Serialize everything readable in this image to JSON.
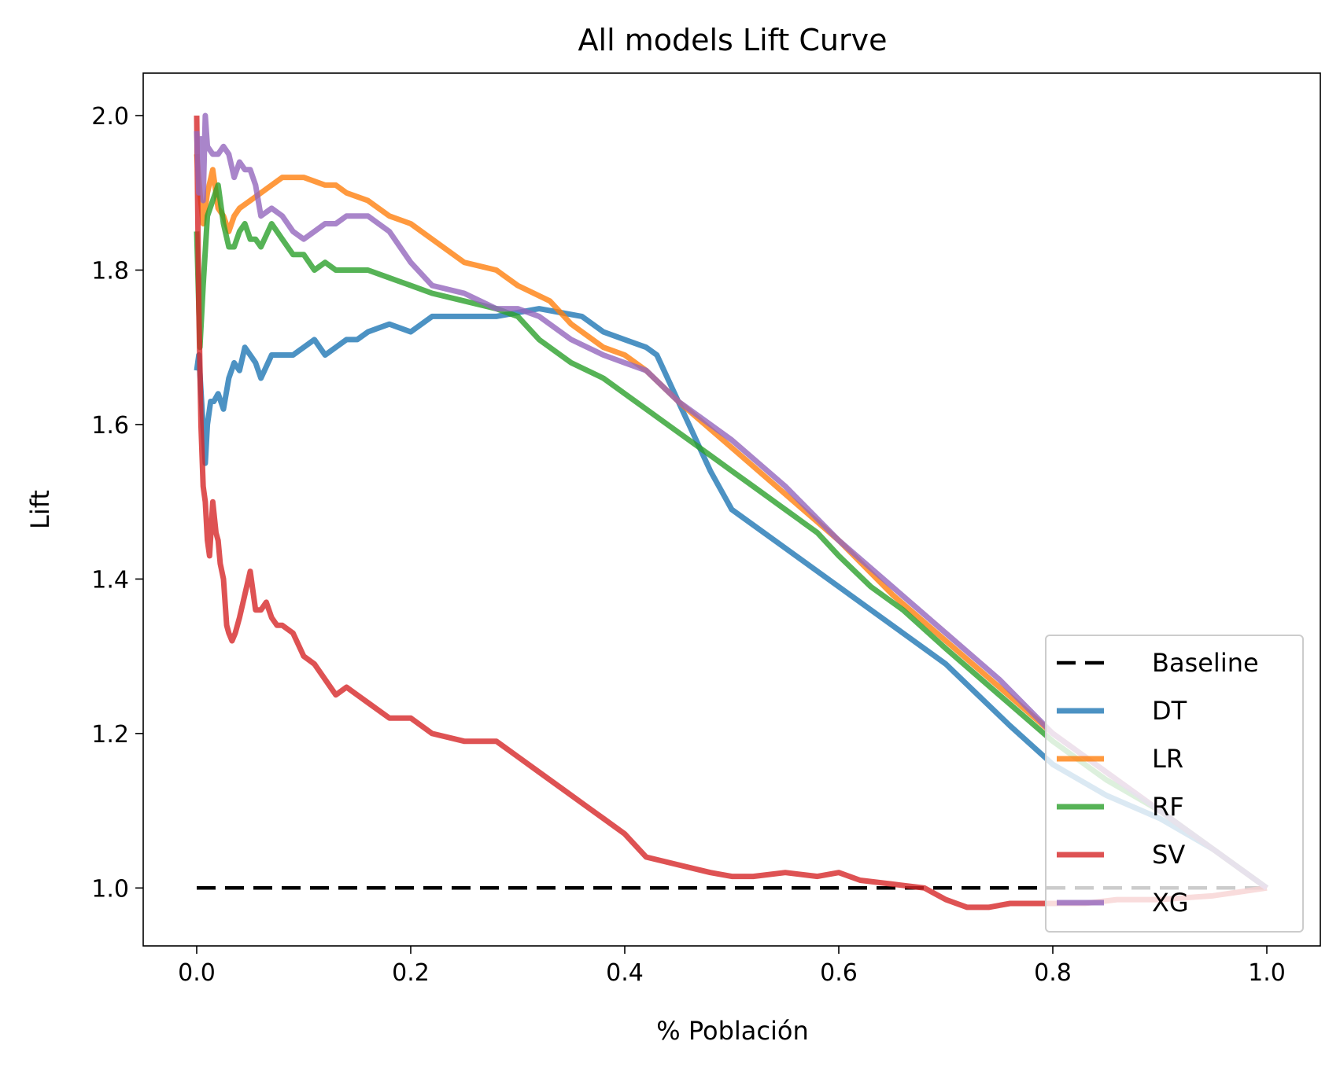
{
  "chart_data": {
    "type": "line",
    "title": "All models Lift Curve",
    "xlabel": "% Población",
    "ylabel": "Lift",
    "xlim": [
      -0.05,
      1.05
    ],
    "ylim": [
      0.925,
      2.055
    ],
    "xticks": [
      0.0,
      0.2,
      0.4,
      0.6,
      0.8,
      1.0
    ],
    "xtick_labels": [
      "0.0",
      "0.2",
      "0.4",
      "0.6",
      "0.8",
      "1.0"
    ],
    "yticks": [
      1.0,
      1.2,
      1.4,
      1.6,
      1.8,
      2.0
    ],
    "ytick_labels": [
      "1.0",
      "1.2",
      "1.4",
      "1.6",
      "1.8",
      "2.0"
    ],
    "grid": false,
    "legend_position": "lower-right",
    "series": [
      {
        "name": "Baseline",
        "color": "#000000",
        "style": "dashed",
        "x": [
          0.0,
          1.0
        ],
        "y": [
          1.0,
          1.0
        ]
      },
      {
        "name": "DT",
        "color": "#1f77b4",
        "style": "solid",
        "x": [
          0.0,
          0.002,
          0.005,
          0.008,
          0.01,
          0.013,
          0.016,
          0.02,
          0.025,
          0.03,
          0.035,
          0.04,
          0.045,
          0.05,
          0.055,
          0.06,
          0.07,
          0.08,
          0.09,
          0.1,
          0.11,
          0.115,
          0.12,
          0.13,
          0.14,
          0.15,
          0.16,
          0.18,
          0.2,
          0.22,
          0.25,
          0.28,
          0.3,
          0.32,
          0.34,
          0.36,
          0.38,
          0.4,
          0.42,
          0.43,
          0.44,
          0.45,
          0.46,
          0.47,
          0.48,
          0.5,
          0.52,
          0.55,
          0.58,
          0.6,
          0.63,
          0.66,
          0.7,
          0.73,
          0.76,
          0.8,
          0.85,
          0.9,
          0.95,
          1.0
        ],
        "y": [
          1.67,
          1.69,
          1.62,
          1.55,
          1.6,
          1.63,
          1.63,
          1.64,
          1.62,
          1.66,
          1.68,
          1.67,
          1.7,
          1.69,
          1.68,
          1.66,
          1.69,
          1.69,
          1.69,
          1.7,
          1.71,
          1.7,
          1.69,
          1.7,
          1.71,
          1.71,
          1.72,
          1.73,
          1.72,
          1.74,
          1.74,
          1.74,
          1.745,
          1.75,
          1.745,
          1.74,
          1.72,
          1.71,
          1.7,
          1.69,
          1.66,
          1.63,
          1.6,
          1.57,
          1.54,
          1.49,
          1.47,
          1.44,
          1.41,
          1.39,
          1.36,
          1.33,
          1.29,
          1.25,
          1.21,
          1.16,
          1.12,
          1.09,
          1.05,
          1.0
        ]
      },
      {
        "name": "LR",
        "color": "#ff7f0e",
        "style": "solid",
        "x": [
          0.0,
          0.003,
          0.006,
          0.01,
          0.015,
          0.02,
          0.025,
          0.03,
          0.035,
          0.04,
          0.05,
          0.06,
          0.07,
          0.08,
          0.1,
          0.12,
          0.13,
          0.14,
          0.16,
          0.18,
          0.2,
          0.22,
          0.25,
          0.28,
          0.3,
          0.33,
          0.35,
          0.38,
          0.4,
          0.42,
          0.45,
          0.5,
          0.55,
          0.6,
          0.65,
          0.7,
          0.75,
          0.8,
          0.85,
          0.9,
          0.95,
          1.0
        ],
        "y": [
          1.95,
          1.9,
          1.86,
          1.9,
          1.93,
          1.88,
          1.87,
          1.85,
          1.87,
          1.88,
          1.89,
          1.9,
          1.91,
          1.92,
          1.92,
          1.91,
          1.91,
          1.9,
          1.89,
          1.87,
          1.86,
          1.84,
          1.81,
          1.8,
          1.78,
          1.76,
          1.73,
          1.7,
          1.69,
          1.67,
          1.63,
          1.57,
          1.51,
          1.45,
          1.38,
          1.32,
          1.26,
          1.2,
          1.15,
          1.1,
          1.05,
          1.0
        ]
      },
      {
        "name": "RF",
        "color": "#2ca02c",
        "style": "solid",
        "x": [
          0.0,
          0.003,
          0.006,
          0.01,
          0.015,
          0.02,
          0.025,
          0.03,
          0.035,
          0.04,
          0.045,
          0.05,
          0.055,
          0.06,
          0.07,
          0.08,
          0.09,
          0.1,
          0.11,
          0.12,
          0.13,
          0.14,
          0.16,
          0.18,
          0.2,
          0.22,
          0.25,
          0.28,
          0.3,
          0.32,
          0.35,
          0.38,
          0.4,
          0.42,
          0.45,
          0.48,
          0.5,
          0.52,
          0.55,
          0.58,
          0.6,
          0.63,
          0.66,
          0.7,
          0.75,
          0.8,
          0.85,
          0.9,
          0.95,
          1.0
        ],
        "y": [
          1.85,
          1.7,
          1.78,
          1.87,
          1.89,
          1.91,
          1.86,
          1.83,
          1.83,
          1.85,
          1.86,
          1.84,
          1.84,
          1.83,
          1.86,
          1.84,
          1.82,
          1.82,
          1.8,
          1.81,
          1.8,
          1.8,
          1.8,
          1.79,
          1.78,
          1.77,
          1.76,
          1.75,
          1.74,
          1.71,
          1.68,
          1.66,
          1.64,
          1.62,
          1.59,
          1.56,
          1.54,
          1.52,
          1.49,
          1.46,
          1.43,
          1.39,
          1.36,
          1.31,
          1.25,
          1.19,
          1.14,
          1.1,
          1.05,
          1.0
        ]
      },
      {
        "name": "SV",
        "color": "#d62728",
        "style": "solid",
        "x": [
          0.0,
          0.002,
          0.004,
          0.006,
          0.008,
          0.01,
          0.012,
          0.015,
          0.018,
          0.02,
          0.022,
          0.025,
          0.028,
          0.03,
          0.033,
          0.036,
          0.04,
          0.045,
          0.05,
          0.055,
          0.06,
          0.065,
          0.07,
          0.075,
          0.08,
          0.09,
          0.1,
          0.11,
          0.12,
          0.13,
          0.14,
          0.15,
          0.16,
          0.18,
          0.2,
          0.22,
          0.25,
          0.28,
          0.3,
          0.32,
          0.34,
          0.36,
          0.38,
          0.4,
          0.42,
          0.45,
          0.48,
          0.5,
          0.52,
          0.55,
          0.58,
          0.6,
          0.62,
          0.65,
          0.68,
          0.7,
          0.72,
          0.74,
          0.76,
          0.78,
          0.8,
          0.83,
          0.86,
          0.9,
          0.95,
          1.0
        ],
        "y": [
          2.0,
          1.75,
          1.6,
          1.52,
          1.5,
          1.45,
          1.43,
          1.5,
          1.46,
          1.45,
          1.42,
          1.4,
          1.34,
          1.33,
          1.32,
          1.33,
          1.35,
          1.38,
          1.41,
          1.36,
          1.36,
          1.37,
          1.35,
          1.34,
          1.34,
          1.33,
          1.3,
          1.29,
          1.27,
          1.25,
          1.26,
          1.25,
          1.24,
          1.22,
          1.22,
          1.2,
          1.19,
          1.19,
          1.17,
          1.15,
          1.13,
          1.11,
          1.09,
          1.07,
          1.04,
          1.03,
          1.02,
          1.015,
          1.015,
          1.02,
          1.015,
          1.02,
          1.01,
          1.005,
          1.0,
          0.985,
          0.975,
          0.975,
          0.98,
          0.98,
          0.98,
          0.98,
          0.985,
          0.985,
          0.99,
          1.0
        ]
      },
      {
        "name": "XG",
        "color": "#9467bd",
        "style": "solid",
        "x": [
          0.0,
          0.002,
          0.004,
          0.006,
          0.008,
          0.01,
          0.015,
          0.02,
          0.025,
          0.03,
          0.035,
          0.04,
          0.045,
          0.05,
          0.055,
          0.06,
          0.07,
          0.08,
          0.09,
          0.1,
          0.11,
          0.12,
          0.13,
          0.14,
          0.15,
          0.16,
          0.18,
          0.2,
          0.22,
          0.25,
          0.28,
          0.3,
          0.32,
          0.35,
          0.38,
          0.4,
          0.42,
          0.45,
          0.5,
          0.55,
          0.6,
          0.65,
          0.7,
          0.75,
          0.8,
          0.85,
          0.9,
          0.95,
          1.0
        ],
        "y": [
          1.98,
          1.9,
          1.97,
          1.89,
          2.0,
          1.96,
          1.95,
          1.95,
          1.96,
          1.95,
          1.92,
          1.94,
          1.93,
          1.93,
          1.91,
          1.87,
          1.88,
          1.87,
          1.85,
          1.84,
          1.85,
          1.86,
          1.86,
          1.87,
          1.87,
          1.87,
          1.85,
          1.81,
          1.78,
          1.77,
          1.75,
          1.75,
          1.74,
          1.71,
          1.69,
          1.68,
          1.67,
          1.63,
          1.58,
          1.52,
          1.45,
          1.39,
          1.33,
          1.27,
          1.2,
          1.15,
          1.1,
          1.05,
          1.0
        ]
      }
    ]
  }
}
